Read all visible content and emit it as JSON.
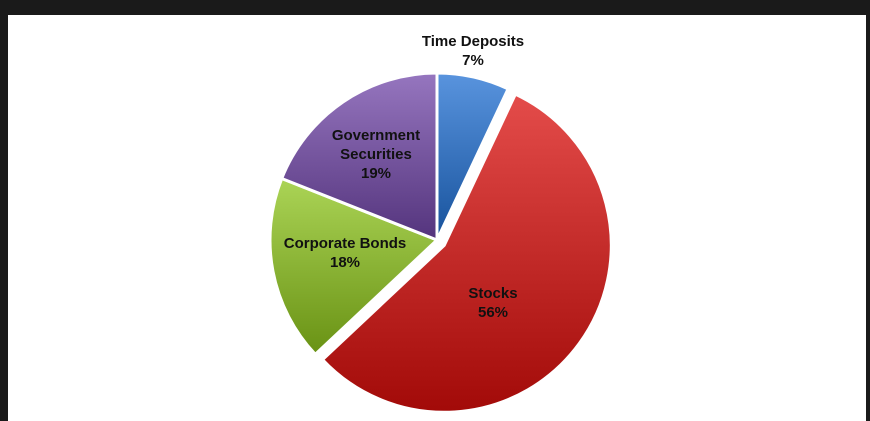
{
  "chart_data": {
    "type": "pie",
    "title": "",
    "categories": [
      "Time Deposits",
      "Stocks",
      "Corporate Bonds",
      "Government Securities"
    ],
    "values": [
      7,
      56,
      18,
      19
    ],
    "value_labels": [
      "7%",
      "56%",
      "18%",
      "19%"
    ],
    "label_lines": [
      [
        "Time Deposits",
        "7%"
      ],
      [
        "Stocks",
        "56%"
      ],
      [
        "Corporate Bonds",
        "18%"
      ],
      [
        "Government",
        "Securities",
        "19%"
      ]
    ],
    "colors": [
      "#3d78c2",
      "#c8302e",
      "#8fb83a",
      "#7a5aa3"
    ],
    "exploded": "Stocks",
    "legend": "none"
  }
}
